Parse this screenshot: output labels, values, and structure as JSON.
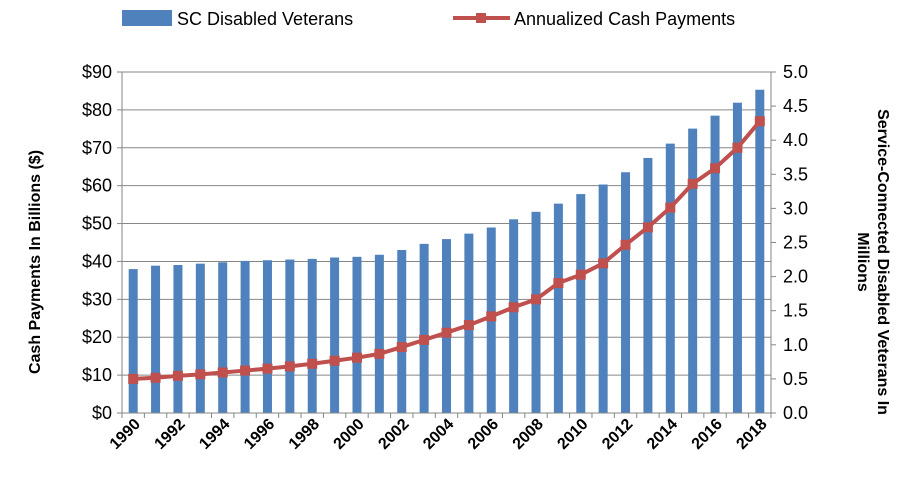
{
  "chart_data": {
    "type": "bar+line",
    "x": [
      "1990",
      "1991",
      "1992",
      "1993",
      "1994",
      "1995",
      "1996",
      "1997",
      "1998",
      "1999",
      "2000",
      "2001",
      "2002",
      "2003",
      "2004",
      "2005",
      "2006",
      "2007",
      "2008",
      "2009",
      "2010",
      "2011",
      "2012",
      "2013",
      "2014",
      "2015",
      "2016",
      "2017",
      "2018"
    ],
    "x_tick_labels": [
      "1990",
      "1992",
      "1994",
      "1996",
      "1998",
      "2000",
      "2002",
      "2004",
      "2006",
      "2008",
      "2010",
      "2012",
      "2014",
      "2016",
      "2018"
    ],
    "series": [
      {
        "name": "SC Disabled Veterans",
        "type": "bar",
        "axis": "right",
        "color": "#4F81BD",
        "values": [
          2.11,
          2.16,
          2.17,
          2.19,
          2.21,
          2.23,
          2.24,
          2.25,
          2.26,
          2.28,
          2.29,
          2.32,
          2.39,
          2.48,
          2.55,
          2.63,
          2.72,
          2.84,
          2.95,
          3.07,
          3.21,
          3.35,
          3.53,
          3.74,
          3.95,
          4.17,
          4.36,
          4.55,
          4.74
        ]
      },
      {
        "name": "Annualized Cash Payments",
        "type": "line",
        "axis": "left",
        "color": "#C0504D",
        "values": [
          9.0,
          9.3,
          9.8,
          10.2,
          10.7,
          11.2,
          11.7,
          12.3,
          13.0,
          13.8,
          14.6,
          15.6,
          17.4,
          19.3,
          21.2,
          23.2,
          25.5,
          27.9,
          30.0,
          34.3,
          36.5,
          39.5,
          44.4,
          49.0,
          54.2,
          60.5,
          64.6,
          70.0,
          77.0
        ]
      }
    ],
    "y_left": {
      "label": "Cash Payments In Billions ($)",
      "ylim": [
        0,
        90
      ],
      "ticks": [
        0,
        10,
        20,
        30,
        40,
        50,
        60,
        70,
        80,
        90
      ],
      "tick_labels": [
        "$0",
        "$10",
        "$20",
        "$30",
        "$40",
        "$50",
        "$60",
        "$70",
        "$80",
        "$90"
      ]
    },
    "y_right": {
      "label_line1": "Service-Connected Disabled Veterans In",
      "label_line2": "Millions",
      "ylim": [
        0,
        5
      ],
      "ticks": [
        0,
        0.5,
        1,
        1.5,
        2,
        2.5,
        3,
        3.5,
        4,
        4.5,
        5
      ],
      "tick_labels": [
        "0.0",
        "0.5",
        "1.0",
        "1.5",
        "2.0",
        "2.5",
        "3.0",
        "3.5",
        "4.0",
        "4.5",
        "5.0"
      ]
    },
    "grid": true,
    "legend_position": "top"
  }
}
